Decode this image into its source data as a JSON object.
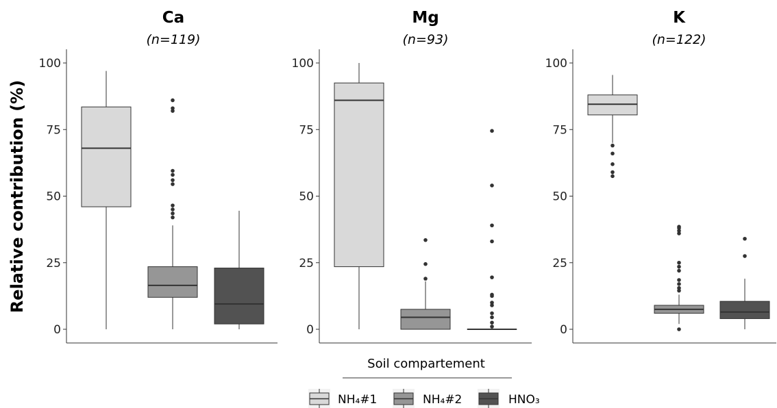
{
  "chart_data": {
    "type": "box",
    "ylabel": "Relative contribution (%)",
    "ylim": [
      0,
      100
    ],
    "yticks": [
      "0",
      "25",
      "50",
      "75",
      "100"
    ],
    "legend": {
      "title": "Soil compartement",
      "placement": "bottom",
      "entries": [
        {
          "name": "NH₄#1",
          "color": "#d9d9d9"
        },
        {
          "name": "NH₄#2",
          "color": "#969696"
        },
        {
          "name": "HNO₃",
          "color": "#525252"
        }
      ]
    },
    "panels": [
      {
        "title": "Ca",
        "subtitle": "(n=119)",
        "boxes": [
          {
            "series": "NH₄#1",
            "min": 0,
            "q1": 46,
            "median": 68,
            "q3": 83.5,
            "max": 97,
            "outliers": []
          },
          {
            "series": "NH₄#2",
            "min": 0,
            "q1": 12,
            "median": 16.5,
            "q3": 23.5,
            "max": 39,
            "outliers": [
              42,
              43.5,
              45,
              46.5,
              54.5,
              56,
              58,
              59.5,
              82,
              83,
              86
            ]
          },
          {
            "series": "HNO₃",
            "min": 0,
            "q1": 2,
            "median": 9.5,
            "q3": 23,
            "max": 44.5,
            "outliers": []
          }
        ]
      },
      {
        "title": "Mg",
        "subtitle": "(n=93)",
        "boxes": [
          {
            "series": "NH₄#1",
            "min": 0,
            "q1": 23.5,
            "median": 86,
            "q3": 92.5,
            "max": 100,
            "outliers": []
          },
          {
            "series": "NH₄#2",
            "min": 0,
            "q1": 0,
            "median": 4.5,
            "q3": 7.5,
            "max": 18,
            "outliers": [
              19,
              24.5,
              33.5
            ]
          },
          {
            "series": "HNO₃",
            "min": 0,
            "q1": 0,
            "median": 0,
            "q3": 0,
            "max": 0,
            "outliers": [
              1,
              2.5,
              4.5,
              6,
              9,
              10,
              12.5,
              13,
              19.5,
              33,
              39,
              54,
              74.5
            ]
          }
        ]
      },
      {
        "title": "K",
        "subtitle": "(n=122)",
        "boxes": [
          {
            "series": "NH₄#1",
            "min": 70,
            "q1": 80.5,
            "median": 84.5,
            "q3": 88,
            "max": 95.5,
            "outliers": [
              57.5,
              59,
              62,
              66,
              69
            ]
          },
          {
            "series": "NH₄#2",
            "min": 2,
            "q1": 6,
            "median": 7.5,
            "q3": 9,
            "max": 13,
            "outliers": [
              0,
              14.5,
              15.5,
              17,
              18.5,
              22,
              23.5,
              25,
              36,
              37,
              38,
              38.5
            ]
          },
          {
            "series": "HNO₃",
            "min": 0,
            "q1": 4,
            "median": 6.5,
            "q3": 10.5,
            "max": 19,
            "outliers": [
              27.5,
              34
            ]
          }
        ]
      }
    ]
  }
}
